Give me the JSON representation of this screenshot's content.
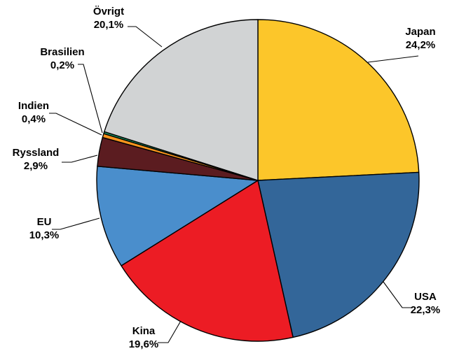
{
  "chart_data": {
    "type": "pie",
    "title": "",
    "legend": "none",
    "slices": [
      {
        "name": "Japan",
        "label": "Japan",
        "value_label": "24,2%",
        "value": 24.2,
        "color": "#fcc62a"
      },
      {
        "name": "USA",
        "label": "USA",
        "value_label": "22,3%",
        "value": 22.3,
        "color": "#336699"
      },
      {
        "name": "Kina",
        "label": "Kina",
        "value_label": "19,6%",
        "value": 19.6,
        "color": "#ec1c24"
      },
      {
        "name": "EU",
        "label": "EU",
        "value_label": "10,3%",
        "value": 10.3,
        "color": "#4a8ecc"
      },
      {
        "name": "Ryssland",
        "label": "Ryssland",
        "value_label": "2,9%",
        "value": 2.9,
        "color": "#5b1c20"
      },
      {
        "name": "Indien",
        "label": "Indien",
        "value_label": "0,4%",
        "value": 0.4,
        "color": "#f7941d"
      },
      {
        "name": "Brasilien",
        "label": "Brasilien",
        "value_label": "0,2%",
        "value": 0.2,
        "color": "#1aa068"
      },
      {
        "name": "Övrigt",
        "label": "Övrigt",
        "value_label": "20,1%",
        "value": 20.1,
        "color": "#d1d3d4"
      }
    ]
  }
}
